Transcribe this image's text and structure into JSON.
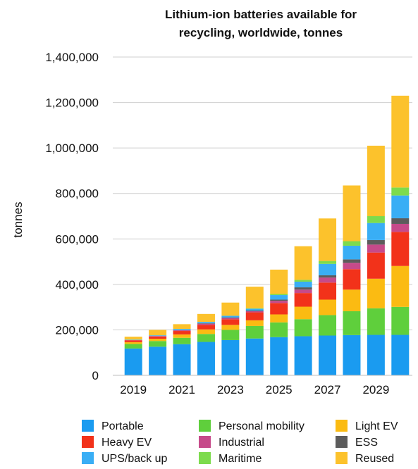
{
  "chart_data": {
    "type": "bar",
    "stacked": true,
    "title_lines": [
      "Lithium-ion batteries available for",
      "recycling, worldwide, tonnes"
    ],
    "ylabel": "tonnes",
    "xlabel": "",
    "ylim": [
      0,
      1400000
    ],
    "y_ticks": [
      "0",
      "200,000",
      "400,000",
      "600,000",
      "800,000",
      "1,000,000",
      "1,200,000",
      "1,400,000"
    ],
    "grid": true,
    "x_tick_labels": [
      "2019",
      "2021",
      "2023",
      "2025",
      "2027",
      "2029"
    ],
    "categories": [
      "2019",
      "2020",
      "2021",
      "2022",
      "2023",
      "2024",
      "2025",
      "2026",
      "2027",
      "2028",
      "2029",
      "2030"
    ],
    "legend_position": "bottom",
    "series": [
      {
        "name": "Portable",
        "color": "#1a9bf0",
        "values": [
          118000,
          126000,
          137000,
          147000,
          155000,
          162000,
          168000,
          172000,
          175000,
          177000,
          178000,
          178000
        ]
      },
      {
        "name": "Personal mobility",
        "color": "#5fcf3c",
        "values": [
          20000,
          25000,
          28000,
          35000,
          45000,
          55000,
          65000,
          75000,
          90000,
          105000,
          117000,
          123000
        ]
      },
      {
        "name": "Light EV",
        "color": "#fbbb12",
        "values": [
          8000,
          10000,
          15000,
          20000,
          22000,
          25000,
          35000,
          55000,
          68000,
          95000,
          130000,
          180000
        ]
      },
      {
        "name": "Heavy EV",
        "color": "#f2321a",
        "values": [
          8000,
          10000,
          15000,
          20000,
          25000,
          35000,
          50000,
          60000,
          75000,
          90000,
          115000,
          150000
        ]
      },
      {
        "name": "Industrial",
        "color": "#c64a8a",
        "values": [
          1000,
          2000,
          3000,
          5000,
          5000,
          5000,
          10000,
          15000,
          22000,
          28000,
          35000,
          35000
        ]
      },
      {
        "name": "ESS",
        "color": "#5c5c5c",
        "values": [
          0,
          0,
          1000,
          2000,
          3000,
          3000,
          5000,
          10000,
          10000,
          15000,
          20000,
          25000
        ]
      },
      {
        "name": "UPS/back up",
        "color": "#39aef5",
        "values": [
          2000,
          3000,
          5000,
          6000,
          7000,
          8000,
          20000,
          25000,
          50000,
          60000,
          75000,
          100000
        ]
      },
      {
        "name": "Maritime",
        "color": "#7ddb4d",
        "values": [
          0,
          0,
          0,
          0,
          0,
          2000,
          5000,
          8000,
          13000,
          20000,
          30000,
          35000
        ]
      },
      {
        "name": "Reused",
        "color": "#fcc22c",
        "values": [
          13000,
          24000,
          21000,
          35000,
          58000,
          95000,
          107000,
          148000,
          187000,
          245000,
          310000,
          404000
        ]
      }
    ]
  }
}
